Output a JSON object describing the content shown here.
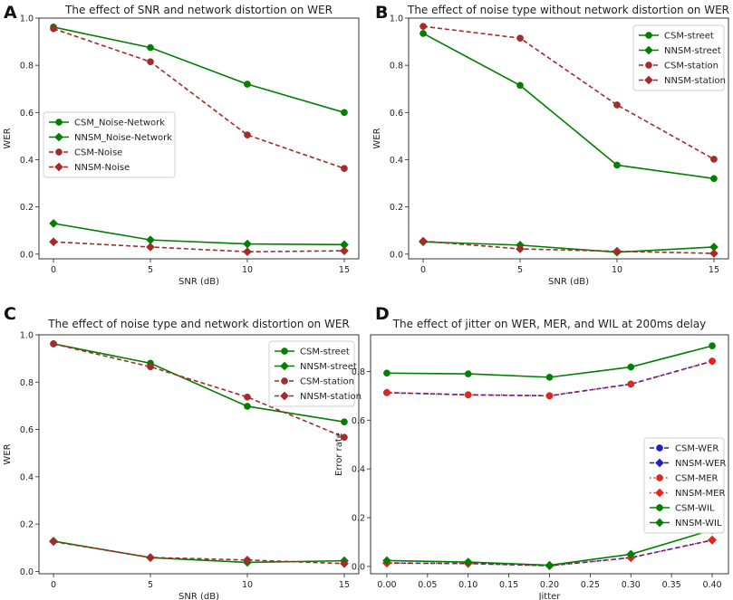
{
  "chart_data": [
    {
      "panel": "A",
      "type": "line",
      "title": "The effect of SNR and network distortion on WER",
      "xlabel": "SNR (dB)",
      "ylabel": "WER",
      "x": [
        0,
        5,
        10,
        15
      ],
      "xticks": [
        0,
        5,
        10,
        15
      ],
      "xtick_labels": [
        "0",
        "5",
        "10",
        "15"
      ],
      "xlim": [
        -0.75,
        15.75
      ],
      "ylim": [
        -0.02,
        1.0
      ],
      "yticks": [
        0.0,
        0.2,
        0.4,
        0.6,
        0.8,
        1.0
      ],
      "ytick_labels": [
        "0.0",
        "0.2",
        "0.4",
        "0.6",
        "0.8",
        "1.0"
      ],
      "legend_position": "center-left",
      "series": [
        {
          "name": "CSM_Noise-Network",
          "values": [
            0.962,
            0.875,
            0.72,
            0.6
          ],
          "color": "#008000",
          "marker": "circle",
          "style": "solid"
        },
        {
          "name": "NNSM_Noise-Network",
          "values": [
            0.13,
            0.06,
            0.043,
            0.04
          ],
          "color": "#008000",
          "marker": "diamond",
          "style": "solid"
        },
        {
          "name": "CSM-Noise",
          "values": [
            0.955,
            0.815,
            0.505,
            0.363
          ],
          "color": "#a52a2a",
          "marker": "circle",
          "style": "dashed"
        },
        {
          "name": "NNSM-Noise",
          "values": [
            0.052,
            0.03,
            0.01,
            0.014
          ],
          "color": "#a52a2a",
          "marker": "diamond",
          "style": "dashed"
        }
      ]
    },
    {
      "panel": "B",
      "type": "line",
      "title": "The effect of noise type without network distortion on WER",
      "xlabel": "SNR (dB)",
      "ylabel": "WER",
      "x": [
        0,
        5,
        10,
        15
      ],
      "xticks": [
        0,
        5,
        10,
        15
      ],
      "xtick_labels": [
        "0",
        "5",
        "10",
        "15"
      ],
      "xlim": [
        -0.75,
        15.75
      ],
      "ylim": [
        -0.02,
        1.0
      ],
      "yticks": [
        0.0,
        0.2,
        0.4,
        0.6,
        0.8,
        1.0
      ],
      "ytick_labels": [
        "0.0",
        "0.2",
        "0.4",
        "0.6",
        "0.8",
        "1.0"
      ],
      "legend_position": "top-right",
      "series": [
        {
          "name": "CSM-street",
          "values": [
            0.935,
            0.715,
            0.377,
            0.32
          ],
          "color": "#008000",
          "marker": "circle",
          "style": "solid"
        },
        {
          "name": "NNSM-street",
          "values": [
            0.052,
            0.038,
            0.008,
            0.03
          ],
          "color": "#008000",
          "marker": "diamond",
          "style": "solid"
        },
        {
          "name": "CSM-station",
          "values": [
            0.965,
            0.915,
            0.632,
            0.402
          ],
          "color": "#a52a2a",
          "marker": "circle",
          "style": "dashed"
        },
        {
          "name": "NNSM-station",
          "values": [
            0.055,
            0.022,
            0.012,
            0.003
          ],
          "color": "#a52a2a",
          "marker": "diamond",
          "style": "dashed"
        }
      ]
    },
    {
      "panel": "C",
      "type": "line",
      "title": "The effect of noise type and network distortion on WER",
      "xlabel": "SNR (dB)",
      "ylabel": "WER",
      "x": [
        0,
        5,
        10,
        15
      ],
      "xticks": [
        0,
        5,
        10,
        15
      ],
      "xtick_labels": [
        "0",
        "5",
        "10",
        "15"
      ],
      "xlim": [
        -0.75,
        15.75
      ],
      "ylim": [
        -0.01,
        1.0
      ],
      "yticks": [
        0.0,
        0.2,
        0.4,
        0.6,
        0.8,
        1.0
      ],
      "ytick_labels": [
        "0.0",
        "0.2",
        "0.4",
        "0.6",
        "0.8",
        "1.0"
      ],
      "legend_position": "top-right",
      "series": [
        {
          "name": "CSM-street",
          "values": [
            0.962,
            0.88,
            0.698,
            0.632
          ],
          "color": "#008000",
          "marker": "circle",
          "style": "solid"
        },
        {
          "name": "NNSM-street",
          "values": [
            0.128,
            0.058,
            0.038,
            0.045
          ],
          "color": "#008000",
          "marker": "diamond",
          "style": "solid"
        },
        {
          "name": "CSM-station",
          "values": [
            0.962,
            0.865,
            0.737,
            0.567
          ],
          "color": "#a52a2a",
          "marker": "circle",
          "style": "dashed"
        },
        {
          "name": "NNSM-station",
          "values": [
            0.126,
            0.059,
            0.048,
            0.033
          ],
          "color": "#a52a2a",
          "marker": "diamond",
          "style": "dashed"
        }
      ]
    },
    {
      "panel": "D",
      "type": "line",
      "title": "The effect of jitter on WER, MER, and WIL at 200ms delay",
      "xlabel": "Jitter",
      "ylabel": "Error rate",
      "x": [
        0.0,
        0.1,
        0.2,
        0.3,
        0.4
      ],
      "xticks": [
        0.0,
        0.05,
        0.1,
        0.15,
        0.2,
        0.25,
        0.3,
        0.35,
        0.4
      ],
      "xtick_labels": [
        "0.00",
        "0.05",
        "0.10",
        "0.15",
        "0.20",
        "0.25",
        "0.30",
        "0.35",
        "0.40"
      ],
      "xlim": [
        -0.02,
        0.42
      ],
      "ylim": [
        -0.03,
        0.95
      ],
      "yticks": [
        0.0,
        0.2,
        0.4,
        0.6,
        0.8
      ],
      "ytick_labels": [
        "0.0",
        "0.2",
        "0.4",
        "0.6",
        "0.8"
      ],
      "legend_position": "center-right",
      "series": [
        {
          "name": "CSM-WER",
          "values": [
            0.713,
            0.704,
            0.7,
            0.748,
            0.842
          ],
          "color": "#1f1fcc",
          "marker": "circle",
          "style": "dashed"
        },
        {
          "name": "NNSM-WER",
          "values": [
            0.014,
            0.012,
            0.003,
            0.036,
            0.108
          ],
          "color": "#1f1fcc",
          "marker": "diamond",
          "style": "dashed"
        },
        {
          "name": "CSM-MER",
          "values": [
            0.713,
            0.704,
            0.7,
            0.748,
            0.842
          ],
          "color": "#e8231a",
          "marker": "circle",
          "style": "dotted"
        },
        {
          "name": "NNSM-MER",
          "values": [
            0.014,
            0.012,
            0.003,
            0.036,
            0.108
          ],
          "color": "#e8231a",
          "marker": "diamond",
          "style": "dotted"
        },
        {
          "name": "CSM-WIL",
          "values": [
            0.793,
            0.79,
            0.776,
            0.818,
            0.905
          ],
          "color": "#008000",
          "marker": "circle",
          "style": "solid"
        },
        {
          "name": "NNSM-WIL",
          "values": [
            0.024,
            0.018,
            0.005,
            0.05,
            0.15
          ],
          "color": "#008000",
          "marker": "diamond",
          "style": "solid"
        }
      ]
    }
  ]
}
